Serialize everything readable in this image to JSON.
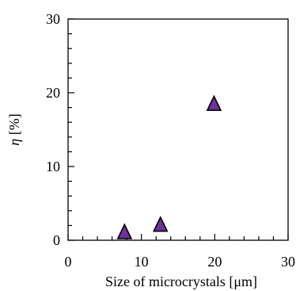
{
  "chart_data": {
    "type": "scatter",
    "xlabel": "Size of microcrystals [μm]",
    "ylabel_symbol": "η",
    "ylabel_unit": " [%]",
    "xlim": [
      0,
      30
    ],
    "ylim": [
      0,
      30
    ],
    "x_ticks": [
      0,
      10,
      20,
      30
    ],
    "y_ticks": [
      0,
      10,
      20,
      30
    ],
    "x_tick_labels": [
      "0",
      "10",
      "20",
      "30"
    ],
    "y_tick_labels": [
      "0",
      "10",
      "20",
      "30"
    ],
    "grid": false,
    "marker": "triangle",
    "series": [
      {
        "points": [
          {
            "x": 7.7,
            "y": 1.1
          },
          {
            "x": 12.6,
            "y": 2.1
          },
          {
            "x": 19.9,
            "y": 18.5
          }
        ]
      }
    ],
    "colors": {
      "marker_fill": "#7030a0",
      "marker_stroke": "#000000",
      "axis": "#000000"
    }
  }
}
